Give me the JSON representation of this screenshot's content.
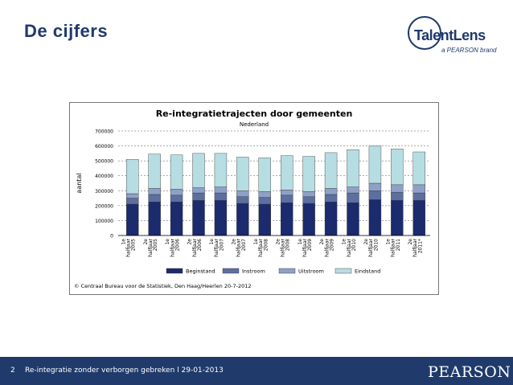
{
  "slide": {
    "title": "De cijfers",
    "logo_main": "TalentLens",
    "logo_sub": "a PEARSON brand",
    "footer_number": "2",
    "footer_text": "Re-integratie zonder verborgen gebreken l 29-01-2013",
    "footer_brand": "PEARSON"
  },
  "colors": {
    "brand": "#1f3a6b",
    "beginstand": "#1c2a6e",
    "instroom": "#5c6fa0",
    "uitstroom": "#8fa0c8",
    "eindstand": "#b6dde2"
  },
  "chart_data": {
    "type": "bar",
    "stacked": true,
    "title": "Re-integratietrajecten door gemeenten",
    "subtitle": "Nederland",
    "xlabel": "",
    "ylabel": "aantal",
    "ylim": [
      0,
      700000
    ],
    "yticks": [
      "0",
      "100000",
      "200000",
      "300000",
      "400000",
      "500000",
      "600000",
      "700000"
    ],
    "grid": true,
    "legend_position": "bottom",
    "categories": [
      "1e halfjaar 2005",
      "2e halfjaar 2005",
      "1e halfjaar 2006",
      "2e halfjaar 2006",
      "1e halfjaar 2007",
      "2e halfjaar 2007",
      "1e halfjaar 2008",
      "2e halfjaar 2008",
      "1e halfjaar 2009",
      "2e halfjaar 2009",
      "1e halfjaar 2010",
      "2e halfjaar 2010",
      "1e halfjaar 2011",
      "2e halfjaar 2011*"
    ],
    "series": [
      {
        "name": "Beginstand",
        "values": [
          210000,
          225000,
          225000,
          235000,
          235000,
          215000,
          210000,
          220000,
          215000,
          225000,
          220000,
          240000,
          235000,
          235000
        ]
      },
      {
        "name": "Instroom",
        "values": [
          40000,
          50000,
          45000,
          50000,
          50000,
          45000,
          45000,
          50000,
          45000,
          50000,
          65000,
          60000,
          55000,
          50000
        ]
      },
      {
        "name": "Uitstroom",
        "values": [
          30000,
          40000,
          40000,
          35000,
          40000,
          40000,
          40000,
          35000,
          35000,
          40000,
          40000,
          50000,
          50000,
          55000
        ]
      },
      {
        "name": "Eindstand",
        "values": [
          230000,
          230000,
          230000,
          230000,
          225000,
          225000,
          225000,
          230000,
          235000,
          240000,
          250000,
          250000,
          240000,
          220000
        ]
      }
    ],
    "source": "© Centraal Bureau voor de Statistiek, Den Haag/Heerlen 20-7-2012"
  }
}
